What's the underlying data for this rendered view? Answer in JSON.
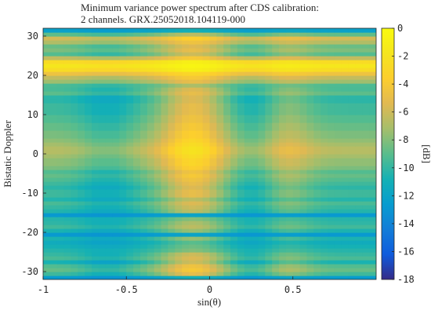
{
  "chart_data": {
    "type": "heatmap",
    "title_lines": [
      "Minimum variance power spectrum after CDS calibration:",
      "2 channels. GRX.25052018.104119-000"
    ],
    "xlabel": "sin(θ)",
    "ylabel": "Bistatic Doppler",
    "xlim": [
      -1,
      1
    ],
    "ylim": [
      -32,
      32
    ],
    "x_ticks": [
      {
        "value": -1,
        "label": "-1"
      },
      {
        "value": -0.5,
        "label": "-0.5"
      },
      {
        "value": 0,
        "label": "0"
      },
      {
        "value": 0.5,
        "label": "0.5"
      }
    ],
    "y_ticks": [
      {
        "value": 30,
        "label": "30"
      },
      {
        "value": 20,
        "label": "20"
      },
      {
        "value": 10,
        "label": "10"
      },
      {
        "value": 0,
        "label": "0"
      },
      {
        "value": -10,
        "label": "-10"
      },
      {
        "value": -20,
        "label": "-20"
      },
      {
        "value": -30,
        "label": "-30"
      }
    ],
    "colorbar": {
      "label": "[dB]",
      "clim": [
        -18,
        0
      ],
      "colormap": "parula",
      "ticks": [
        {
          "value": 0,
          "label": "0"
        },
        {
          "value": -2,
          "label": "-2"
        },
        {
          "value": -4,
          "label": "-4"
        },
        {
          "value": -6,
          "label": "-6"
        },
        {
          "value": -8,
          "label": "-8"
        },
        {
          "value": -10,
          "label": "-10"
        },
        {
          "value": -12,
          "label": "-12"
        },
        {
          "value": -14,
          "label": "-14"
        },
        {
          "value": -16,
          "label": "-16"
        },
        {
          "value": -18,
          "label": "-18"
        }
      ]
    },
    "doppler_bins": [
      -31.5,
      -30.5,
      -29.5,
      -28.5,
      -27.5,
      -26.5,
      -25.5,
      -24.5,
      -23.5,
      -22.5,
      -21.5,
      -20.5,
      -19.5,
      -18.5,
      -17.5,
      -16.5,
      -15.5,
      -14.5,
      -13.5,
      -12.5,
      -11.5,
      -10.5,
      -9.5,
      -8.5,
      -7.5,
      -6.5,
      -5.5,
      -4.5,
      -3.5,
      -2.5,
      -1.5,
      -0.5,
      0.5,
      1.5,
      2.5,
      3.5,
      4.5,
      5.5,
      6.5,
      7.5,
      8.5,
      9.5,
      10.5,
      11.5,
      12.5,
      13.5,
      14.5,
      15.5,
      16.5,
      17.5,
      18.5,
      19.5,
      20.5,
      21.5,
      22.5,
      23.5,
      24.5,
      25.5,
      26.5,
      27.5,
      28.5,
      29.5,
      30.5,
      31.5
    ],
    "row_peak_db": [
      -11,
      -5,
      -4,
      -4.5,
      -6,
      -5.5,
      -6,
      -8,
      -8.5,
      -9,
      -7.5,
      -12,
      -7.5,
      -6.5,
      -7,
      -8,
      -12,
      -6.5,
      -6,
      -5.5,
      -6.5,
      -5,
      -5,
      -5.5,
      -5,
      -4.5,
      -4,
      -4.5,
      -3.5,
      -3,
      -3,
      -2.5,
      -2,
      -2,
      -2.5,
      -3,
      -3.5,
      -3.5,
      -4,
      -4,
      -4.5,
      -4.5,
      -5,
      -5,
      -5,
      -5.5,
      -5.5,
      -5,
      -5.5,
      -7,
      -5,
      -4,
      -3,
      -1,
      -0.5,
      -1,
      -4,
      -6,
      -5,
      -5.5,
      -4.5,
      -3.5,
      -6.5,
      -11
    ],
    "row_depth_db": [
      2,
      6,
      6,
      6,
      6,
      5,
      5,
      3,
      3,
      3,
      4,
      1,
      4,
      4,
      4,
      3,
      1,
      5,
      5,
      5,
      5,
      6,
      6,
      6,
      6,
      6,
      6,
      6,
      6,
      6,
      6,
      6,
      6,
      6,
      6,
      6,
      6,
      6,
      6,
      6,
      6,
      6,
      6,
      6,
      6,
      6,
      6,
      5,
      5,
      3,
      3,
      3,
      2,
      2,
      1.5,
      2,
      3,
      4,
      4,
      4,
      3,
      3,
      3,
      1.5
    ],
    "angular_profile": {
      "main_lobe_center": -0.1,
      "main_lobe_width": 0.2,
      "side_lobe_center": 0.45,
      "side_lobe_width": 0.16,
      "side_lobe_level": 0.35,
      "null_centers": [
        -0.62,
        0.28
      ],
      "null_width": 0.16
    }
  }
}
